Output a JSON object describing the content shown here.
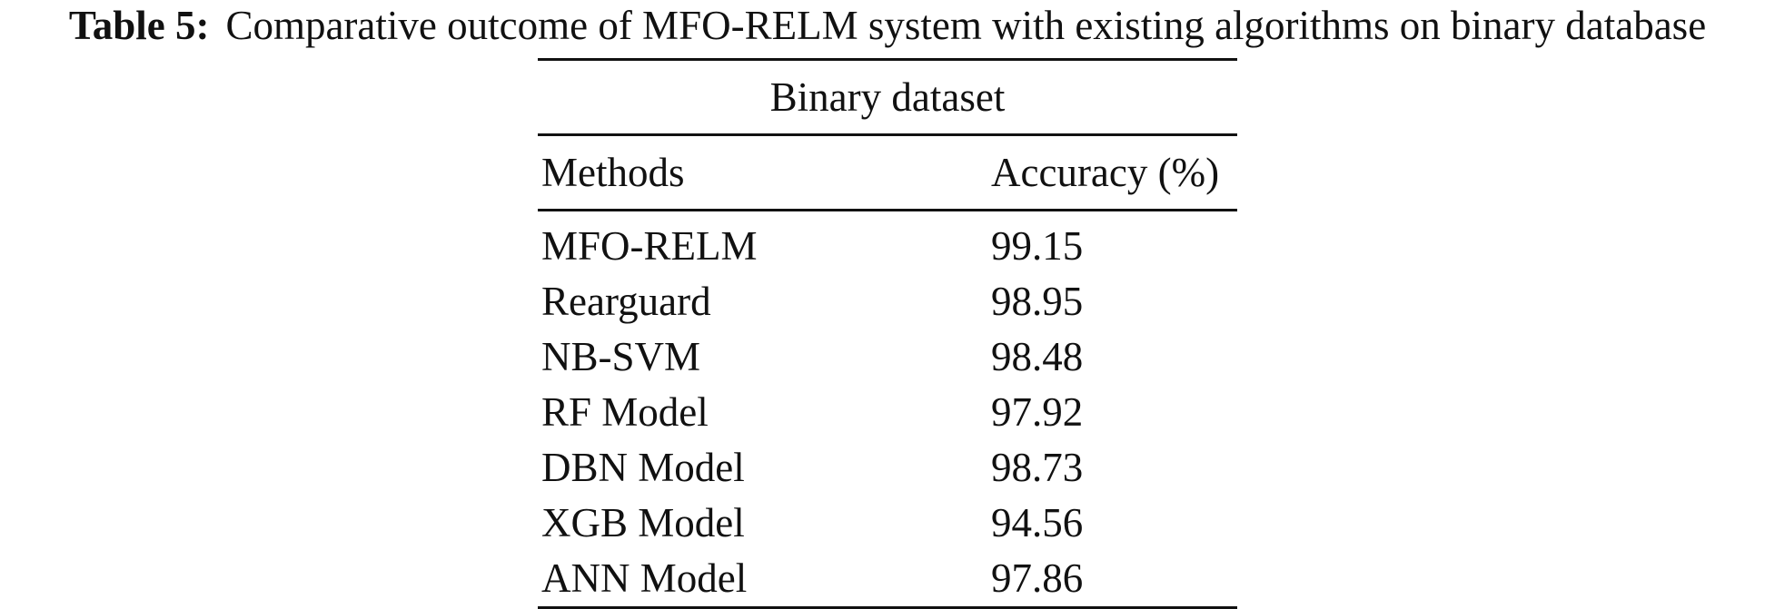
{
  "caption": {
    "label": "Table 5:",
    "text": "Comparative outcome of MFO-RELM system with existing algorithms on binary database"
  },
  "table": {
    "group_header": "Binary dataset",
    "columns": [
      "Methods",
      "Accuracy (%)"
    ],
    "rows": [
      {
        "method": "MFO-RELM",
        "accuracy": "99.15"
      },
      {
        "method": "Rearguard",
        "accuracy": "98.95"
      },
      {
        "method": "NB-SVM",
        "accuracy": "98.48"
      },
      {
        "method": "RF Model",
        "accuracy": "97.92"
      },
      {
        "method": "DBN Model",
        "accuracy": "98.73"
      },
      {
        "method": "XGB Model",
        "accuracy": "94.56"
      },
      {
        "method": "ANN Model",
        "accuracy": "97.86"
      }
    ]
  }
}
